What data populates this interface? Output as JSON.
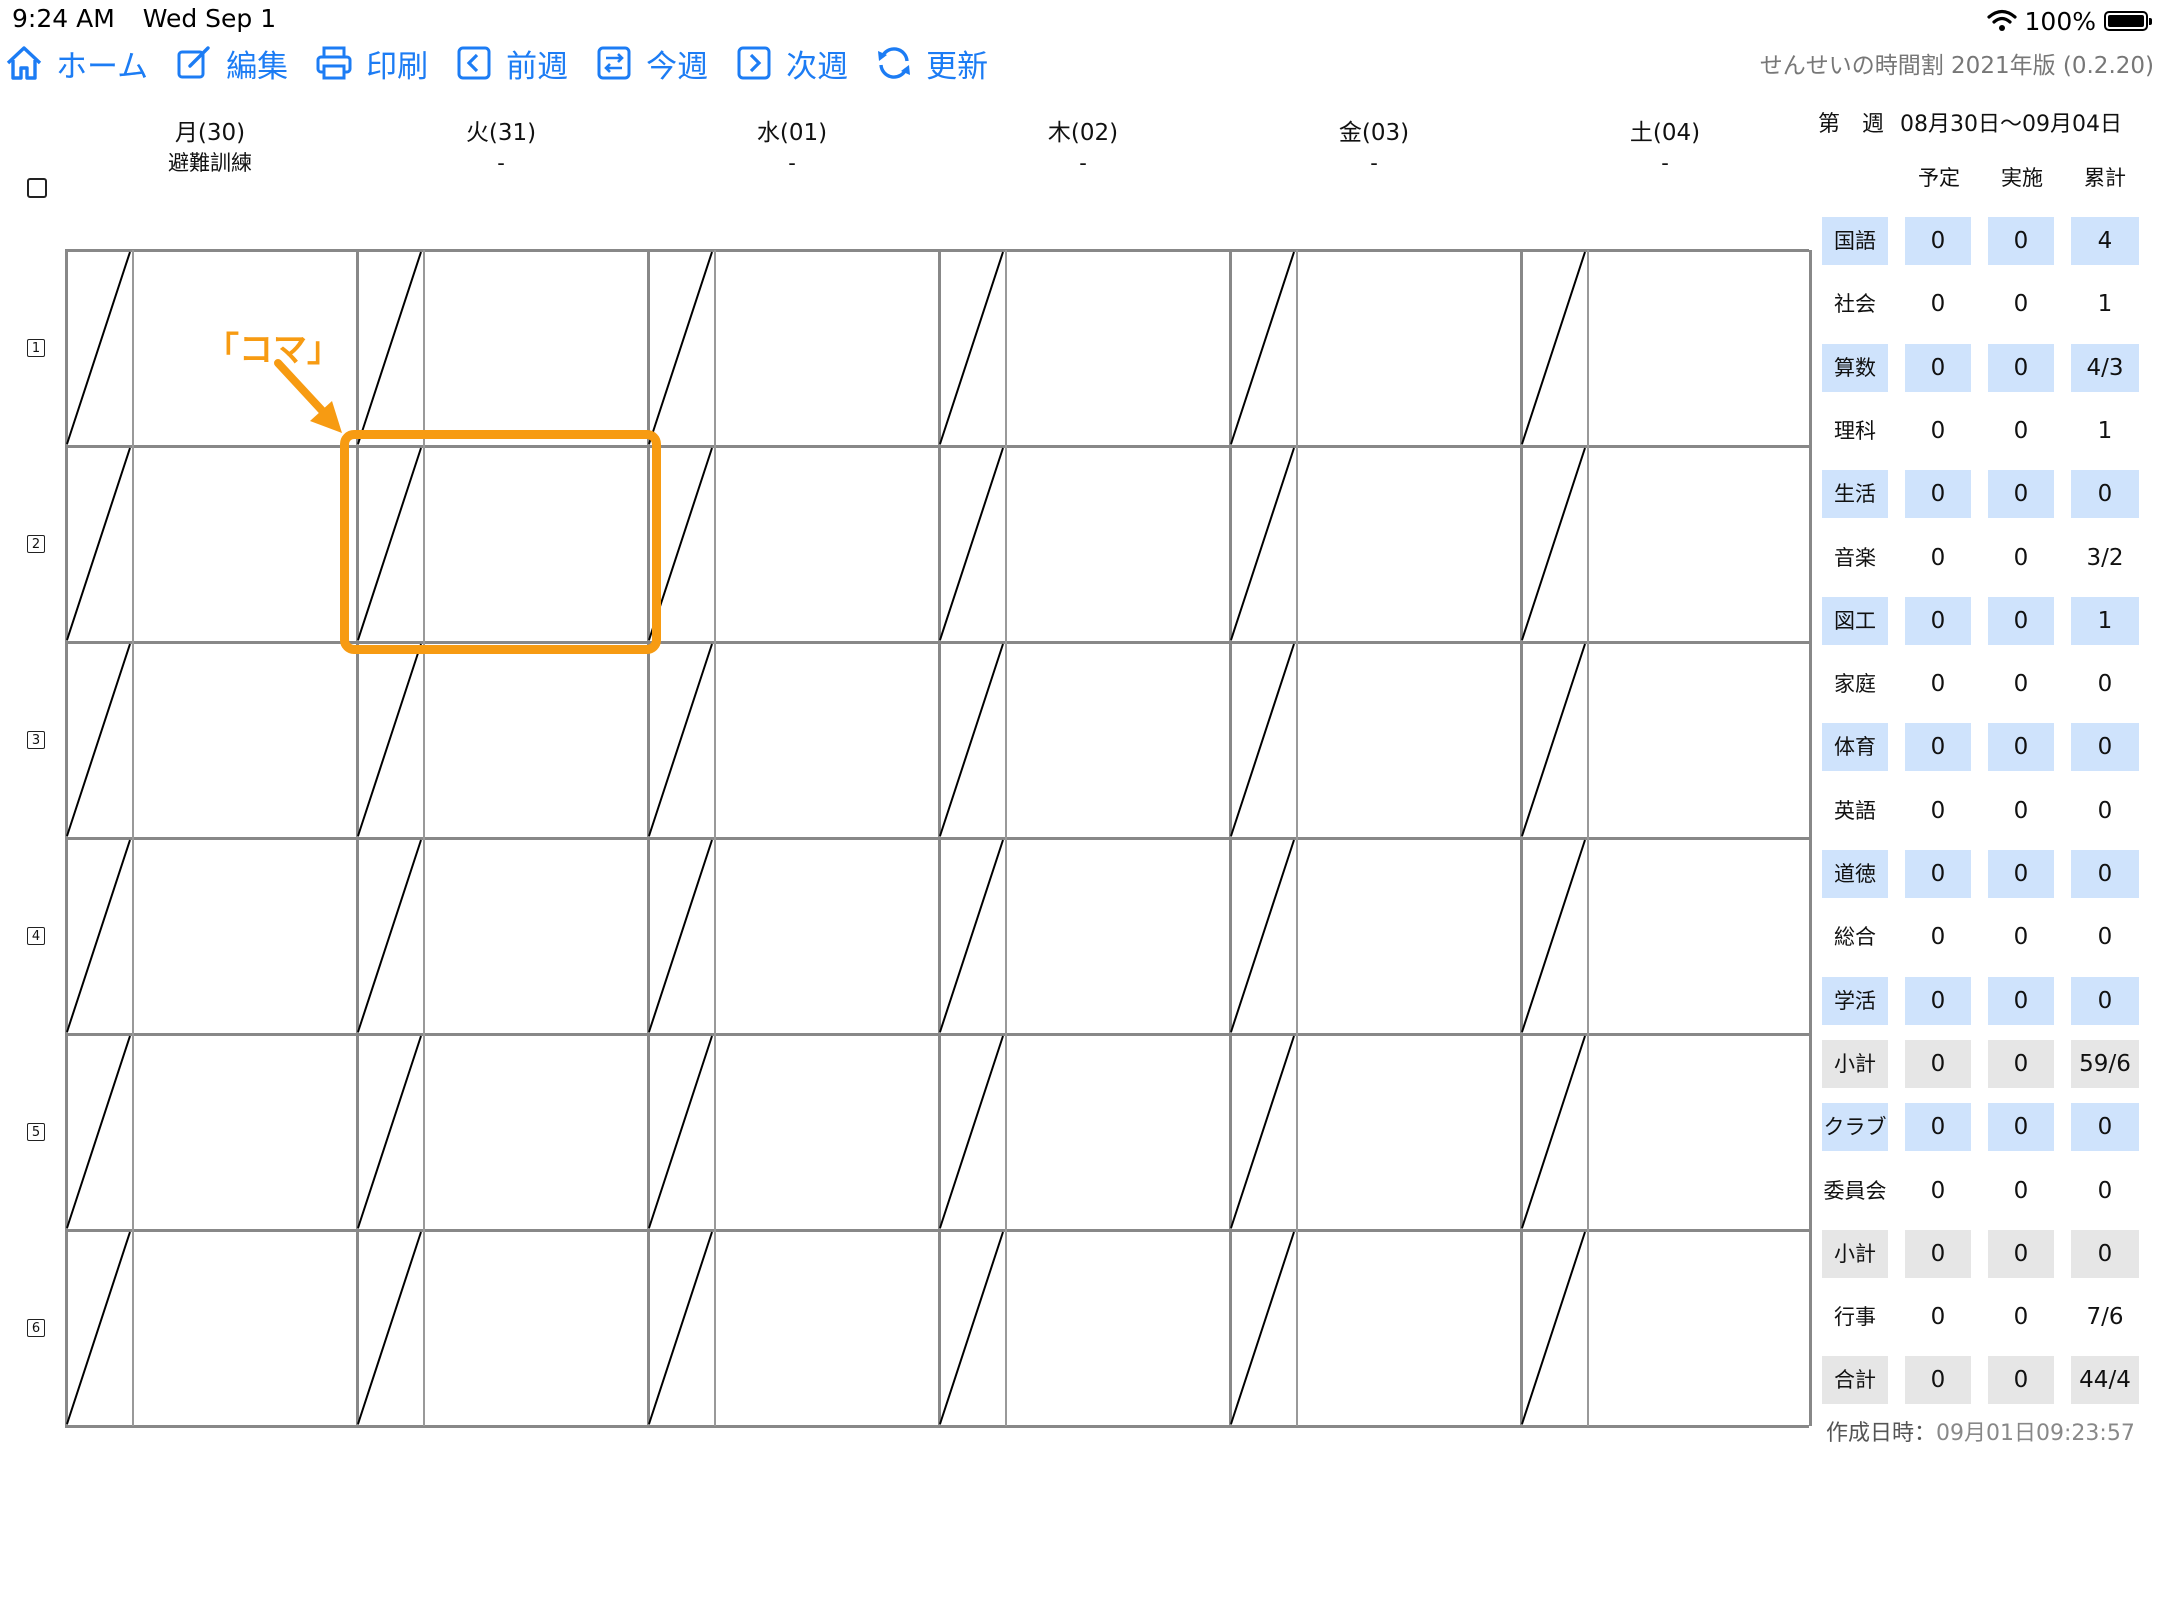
{
  "status_bar": {
    "time": "9:24 AM",
    "date": "Wed Sep 1",
    "battery": "100%",
    "battery_level": 1.0
  },
  "toolbar": {
    "items": [
      {
        "label": "ホーム",
        "icon": "home-icon"
      },
      {
        "label": "編集",
        "icon": "edit-icon"
      },
      {
        "label": "印刷",
        "icon": "printer-icon"
      },
      {
        "label": "前週",
        "icon": "chevron-left-icon"
      },
      {
        "label": "今週",
        "icon": "swap-icon"
      },
      {
        "label": "次週",
        "icon": "chevron-right-icon"
      },
      {
        "label": "更新",
        "icon": "refresh-icon"
      }
    ],
    "accent_color": "#1c7cf4"
  },
  "app": {
    "title": "せんせいの時間割",
    "version": "2021年版 (0.2.20)"
  },
  "days": [
    {
      "label": "月(30)",
      "event": "避難訓練"
    },
    {
      "label": "火(31)",
      "event": "-"
    },
    {
      "label": "水(01)",
      "event": "-"
    },
    {
      "label": "木(02)",
      "event": "-"
    },
    {
      "label": "金(03)",
      "event": "-"
    },
    {
      "label": "土(04)",
      "event": "-"
    }
  ],
  "periods": [
    "1",
    "2",
    "3",
    "4",
    "5",
    "6"
  ],
  "callout": {
    "label": "「コマ」",
    "color": "#f79b12"
  },
  "summary": {
    "week_label": "第　週",
    "range": "08月30日〜09月04日",
    "columns": [
      "予定",
      "実施",
      "累計"
    ],
    "rows": [
      {
        "label": "国語",
        "plan": "0",
        "done": "0",
        "total": "4",
        "style": "blue"
      },
      {
        "label": "社会",
        "plan": "0",
        "done": "0",
        "total": "1",
        "style": "plain"
      },
      {
        "label": "算数",
        "plan": "0",
        "done": "0",
        "total": "4/3",
        "style": "blue"
      },
      {
        "label": "理科",
        "plan": "0",
        "done": "0",
        "total": "1",
        "style": "plain"
      },
      {
        "label": "生活",
        "plan": "0",
        "done": "0",
        "total": "0",
        "style": "blue"
      },
      {
        "label": "音楽",
        "plan": "0",
        "done": "0",
        "total": "3/2",
        "style": "plain"
      },
      {
        "label": "図工",
        "plan": "0",
        "done": "0",
        "total": "1",
        "style": "blue"
      },
      {
        "label": "家庭",
        "plan": "0",
        "done": "0",
        "total": "0",
        "style": "plain"
      },
      {
        "label": "体育",
        "plan": "0",
        "done": "0",
        "total": "0",
        "style": "blue"
      },
      {
        "label": "英語",
        "plan": "0",
        "done": "0",
        "total": "0",
        "style": "plain"
      },
      {
        "label": "道徳",
        "plan": "0",
        "done": "0",
        "total": "0",
        "style": "blue"
      },
      {
        "label": "総合",
        "plan": "0",
        "done": "0",
        "total": "0",
        "style": "plain"
      },
      {
        "label": "学活",
        "plan": "0",
        "done": "0",
        "total": "0",
        "style": "blue"
      },
      {
        "label": "小計",
        "plan": "0",
        "done": "0",
        "total": "59/6",
        "style": "gray"
      },
      {
        "label": "クラブ",
        "plan": "0",
        "done": "0",
        "total": "0",
        "style": "blue"
      },
      {
        "label": "委員会",
        "plan": "0",
        "done": "0",
        "total": "0",
        "style": "plain"
      },
      {
        "label": "小計",
        "plan": "0",
        "done": "0",
        "total": "0",
        "style": "gray"
      },
      {
        "label": "行事",
        "plan": "0",
        "done": "0",
        "total": "7/6",
        "style": "plain"
      },
      {
        "label": "合計",
        "plan": "0",
        "done": "0",
        "total": "44/4",
        "style": "gray"
      }
    ],
    "footer_label": "作成日時：",
    "footer_time": "09月01日09:23:57"
  }
}
